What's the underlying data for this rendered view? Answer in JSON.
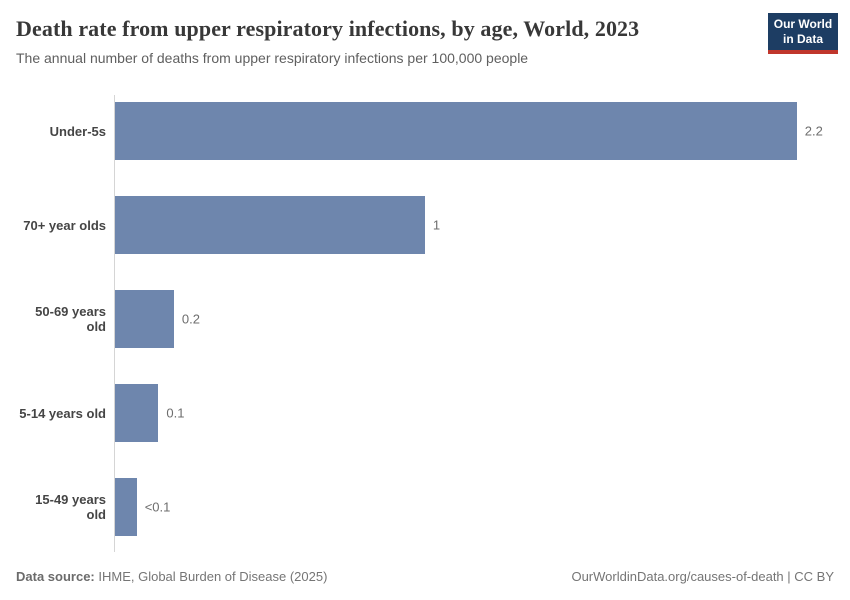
{
  "header": {
    "title": "Death rate from upper respiratory infections, by age, World, 2023",
    "subtitle": "The annual number of deaths from upper respiratory infections per 100,000 people",
    "logo": {
      "line1": "Our World",
      "line2": "in Data",
      "bg_color": "#1d3d63",
      "accent_color": "#c0362c"
    }
  },
  "chart_data": {
    "type": "bar",
    "orientation": "horizontal",
    "title": "Death rate from upper respiratory infections, by age, World, 2023",
    "xlabel": "",
    "ylabel": "",
    "categories": [
      "Under-5s",
      "70+ year olds",
      "50-69 years old",
      "5-14 years old",
      "15-49 years old"
    ],
    "value_labels": [
      "2.2",
      "1",
      "0.2",
      "0.1",
      "<0.1"
    ],
    "values": [
      2.2,
      1.0,
      0.19,
      0.14,
      0.07
    ],
    "xlim": [
      0,
      2.32
    ],
    "grid": false,
    "legend": false,
    "bar_color": "#6e86ad",
    "axis_color": "#d5d5d5"
  },
  "footer": {
    "source_label": "Data source:",
    "source_text": " IHME, Global Burden of Disease (2025)",
    "link_text": "OurWorldinData.org/causes-of-death | CC BY"
  }
}
